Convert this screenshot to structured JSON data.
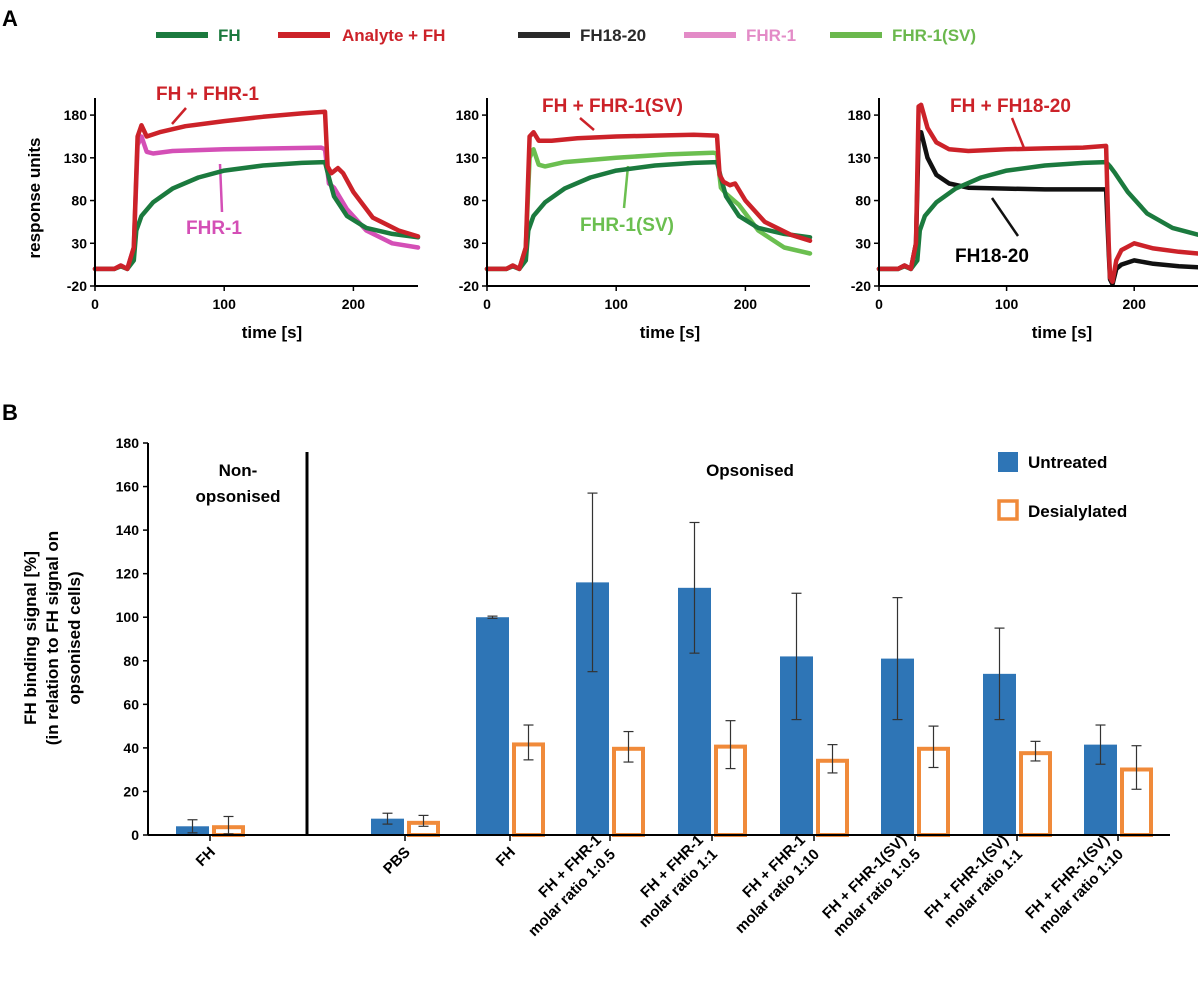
{
  "panel_labels": {
    "a": "A",
    "b": "B"
  },
  "legend_a": [
    {
      "label": "FH",
      "color": "#1b7a3e"
    },
    {
      "label": "Analyte + FH",
      "color": "#cc2229"
    },
    {
      "label": "FH18-20",
      "color": "#2a2a2a"
    },
    {
      "label": "FHR-1",
      "color": "#e38bc7"
    },
    {
      "label": "FHR-1(SV)",
      "color": "#6bb84d"
    }
  ],
  "colors": {
    "fh": "#1b7a3e",
    "analyte": "#cc2229",
    "fh1820": "#111111",
    "fhr1": "#d44fb6",
    "fhr1sv": "#6bbf50",
    "untreated": "#2e75b6",
    "desialylated": "#f08a3a"
  },
  "chart_data": [
    {
      "type": "line",
      "id": "A1",
      "xlabel": "time [s]",
      "ylabel": "response units",
      "xlim": [
        0,
        250
      ],
      "ylim": [
        -20,
        200
      ],
      "xticks": [
        "0",
        "100",
        "200"
      ],
      "yticks": [
        "-20",
        "30",
        "80",
        "130",
        "180"
      ],
      "annotations": {
        "analyte_label": "FH + FHR-1",
        "component_label": "FHR-1"
      },
      "series": [
        {
          "name": "FH",
          "x": [
            0,
            15,
            20,
            25,
            30,
            32,
            36,
            45,
            60,
            80,
            100,
            130,
            160,
            178,
            181,
            185,
            195,
            210,
            230,
            250
          ],
          "y": [
            0,
            0,
            3,
            0,
            10,
            45,
            62,
            78,
            94,
            107,
            115,
            121,
            124,
            125,
            107,
            85,
            62,
            48,
            41,
            37
          ]
        },
        {
          "name": "Analyte + FH",
          "x": [
            0,
            15,
            20,
            25,
            30,
            33,
            36,
            40,
            50,
            70,
            100,
            130,
            160,
            178,
            180,
            183,
            188,
            192,
            200,
            215,
            235,
            250
          ],
          "y": [
            0,
            0,
            4,
            0,
            25,
            155,
            168,
            155,
            160,
            167,
            173,
            178,
            182,
            184,
            120,
            112,
            118,
            112,
            90,
            60,
            45,
            38
          ]
        },
        {
          "name": "FHR-1",
          "x": [
            0,
            15,
            20,
            25,
            30,
            33,
            36,
            40,
            45,
            60,
            100,
            140,
            175,
            178,
            181,
            185,
            195,
            210,
            230,
            250
          ],
          "y": [
            0,
            0,
            4,
            0,
            25,
            145,
            155,
            137,
            135,
            138,
            140,
            141,
            142,
            140,
            100,
            95,
            70,
            45,
            30,
            25
          ]
        }
      ]
    },
    {
      "type": "line",
      "id": "A2",
      "xlabel": "time [s]",
      "ylabel": "",
      "xlim": [
        0,
        250
      ],
      "ylim": [
        -20,
        200
      ],
      "xticks": [
        "0",
        "100",
        "200"
      ],
      "yticks": [
        "-20",
        "30",
        "80",
        "130",
        "180"
      ],
      "annotations": {
        "analyte_label": "FH + FHR-1(SV)",
        "component_label": "FHR-1(SV)"
      },
      "series": [
        {
          "name": "FH",
          "x": [
            0,
            15,
            20,
            25,
            30,
            32,
            36,
            45,
            60,
            80,
            100,
            130,
            160,
            178,
            181,
            185,
            195,
            210,
            230,
            250
          ],
          "y": [
            0,
            0,
            3,
            0,
            10,
            45,
            62,
            78,
            94,
            107,
            115,
            121,
            124,
            125,
            107,
            85,
            62,
            48,
            41,
            37
          ]
        },
        {
          "name": "Analyte + FH",
          "x": [
            0,
            15,
            20,
            25,
            30,
            33,
            36,
            40,
            50,
            70,
            100,
            130,
            160,
            178,
            180,
            183,
            188,
            192,
            200,
            215,
            235,
            250
          ],
          "y": [
            0,
            0,
            4,
            0,
            25,
            155,
            160,
            150,
            150,
            153,
            155,
            156,
            157,
            156,
            110,
            102,
            98,
            100,
            80,
            55,
            40,
            33
          ]
        },
        {
          "name": "FHR-1(SV)",
          "x": [
            0,
            15,
            20,
            25,
            30,
            33,
            36,
            40,
            45,
            60,
            100,
            140,
            175,
            178,
            181,
            185,
            195,
            210,
            230,
            250
          ],
          "y": [
            0,
            0,
            4,
            0,
            25,
            130,
            140,
            122,
            120,
            125,
            130,
            134,
            136,
            135,
            95,
            88,
            75,
            45,
            25,
            18
          ]
        }
      ]
    },
    {
      "type": "line",
      "id": "A3",
      "xlabel": "time [s]",
      "ylabel": "",
      "xlim": [
        0,
        250
      ],
      "ylim": [
        -20,
        200
      ],
      "xticks": [
        "0",
        "100",
        "200"
      ],
      "yticks": [
        "-20",
        "30",
        "80",
        "130",
        "180"
      ],
      "annotations": {
        "analyte_label": "FH + FH18-20",
        "component_label": "FH18-20"
      },
      "series": [
        {
          "name": "FH",
          "x": [
            0,
            15,
            20,
            25,
            30,
            32,
            36,
            45,
            60,
            80,
            100,
            130,
            160,
            178,
            181,
            185,
            195,
            210,
            230,
            250
          ],
          "y": [
            0,
            0,
            3,
            0,
            10,
            45,
            62,
            78,
            94,
            107,
            115,
            121,
            124,
            125,
            120,
            112,
            90,
            65,
            48,
            40
          ]
        },
        {
          "name": "Analyte + FH",
          "x": [
            0,
            15,
            20,
            25,
            29,
            31,
            33,
            38,
            45,
            55,
            70,
            100,
            130,
            160,
            178,
            180,
            181,
            183,
            186,
            190,
            200,
            215,
            235,
            250
          ],
          "y": [
            0,
            0,
            4,
            0,
            30,
            190,
            192,
            165,
            148,
            140,
            138,
            140,
            141,
            142,
            144,
            30,
            -10,
            -15,
            10,
            22,
            30,
            24,
            20,
            18
          ]
        },
        {
          "name": "FH18-20",
          "x": [
            0,
            15,
            20,
            25,
            29,
            31,
            33,
            38,
            45,
            55,
            70,
            100,
            130,
            160,
            178,
            180,
            181,
            183,
            186,
            190,
            200,
            215,
            235,
            250
          ],
          "y": [
            0,
            0,
            4,
            0,
            30,
            155,
            160,
            130,
            110,
            100,
            95,
            94,
            93,
            93,
            93,
            20,
            -12,
            -18,
            0,
            5,
            10,
            6,
            3,
            2
          ]
        }
      ]
    },
    {
      "type": "bar",
      "id": "B",
      "ylabel_lines": [
        "FH binding signal [%]",
        "(in relation to FH signal on",
        "opsonised cells)"
      ],
      "ylim": [
        0,
        180
      ],
      "yticks": [
        "0",
        "20",
        "40",
        "60",
        "80",
        "100",
        "120",
        "140",
        "160",
        "180"
      ],
      "sections": {
        "left": [
          "Non-",
          "opsonised"
        ],
        "right": "Opsonised"
      },
      "legend": [
        "Untreated",
        "Desialylated"
      ],
      "categories": [
        [
          "FH"
        ],
        [
          "PBS"
        ],
        [
          "FH"
        ],
        [
          "FH + FHR-1",
          "molar ratio 1:0.5"
        ],
        [
          "FH + FHR-1",
          "molar ratio 1:1"
        ],
        [
          "FH + FHR-1",
          "molar ratio 1:10"
        ],
        [
          "FH + FHR-1(SV)",
          "molar ratio 1:0.5"
        ],
        [
          "FH + FHR-1(SV)",
          "molar ratio 1:1"
        ],
        [
          "FH + FHR-1(SV)",
          "molar ratio 1:10"
        ]
      ],
      "series": [
        {
          "name": "Untreated",
          "values": [
            4,
            7.5,
            100,
            116,
            113.5,
            82,
            81,
            74,
            41.5
          ],
          "errors": [
            3,
            2.5,
            0.5,
            41,
            30,
            29,
            28,
            21,
            9
          ]
        },
        {
          "name": "Desialylated",
          "values": [
            4.5,
            6.5,
            42.5,
            40.5,
            41.5,
            35,
            40.5,
            38.5,
            31
          ],
          "errors": [
            4,
            2.5,
            8,
            7,
            11,
            6.5,
            9.5,
            4.5,
            10
          ]
        }
      ]
    }
  ]
}
